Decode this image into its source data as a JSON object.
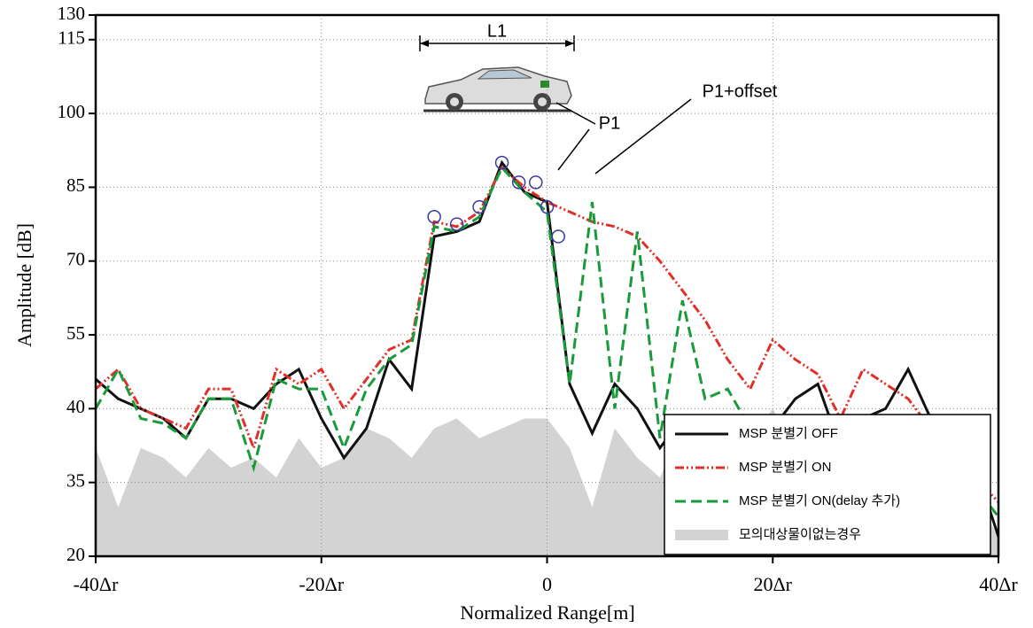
{
  "chart_data": {
    "type": "line",
    "ylabel": "Amplitude [dB]",
    "xlabel": "Normalized Range[m]",
    "xlim": [
      -40,
      40
    ],
    "xticks": [
      {
        "value": -40,
        "label": "-40Δr"
      },
      {
        "value": -20,
        "label": "-20Δr"
      },
      0,
      {
        "value": 20,
        "label": "20Δr"
      },
      {
        "value": 40,
        "label": "40Δr"
      }
    ],
    "ylim": [
      20,
      130
    ],
    "yticks": [
      20,
      35,
      {
        "value": 50,
        "label": "40"
      },
      {
        "value": 65,
        "label": "55"
      },
      {
        "value": 80,
        "label": "70"
      },
      {
        "value": 95,
        "label": "85"
      },
      {
        "value": 110,
        "label": "100"
      },
      {
        "value": 125,
        "label": "115"
      },
      130
    ],
    "grid": true,
    "legend": "lower right",
    "annotations": [
      "L1",
      "P1",
      "P1+offset"
    ],
    "x": [
      -40,
      -38,
      -36,
      -34,
      -32,
      -30,
      -28,
      -26,
      -24,
      -22,
      -20,
      -18,
      -16,
      -14,
      -12,
      -10,
      -8,
      -6,
      -4,
      -2,
      0,
      2,
      4,
      6,
      8,
      10,
      12,
      14,
      16,
      18,
      20,
      22,
      24,
      26,
      28,
      30,
      32,
      34,
      36,
      38,
      40
    ],
    "series": [
      {
        "name": "MSP 분별기 OFF",
        "color": "#111111",
        "style": "solid",
        "values": [
          56,
          52,
          50,
          48,
          44,
          52,
          52,
          50,
          55,
          58,
          48,
          40,
          46,
          60,
          54,
          85,
          86,
          88,
          100,
          94,
          92,
          55,
          45,
          55,
          50,
          42,
          48,
          44,
          40,
          44,
          46,
          52,
          55,
          42,
          48,
          50,
          58,
          48,
          46,
          38,
          24
        ]
      },
      {
        "name": "MSP 분별기 ON",
        "color": "#e0302a",
        "style": "dashdotdot",
        "values": [
          54,
          58,
          50,
          48,
          46,
          54,
          54,
          42,
          58,
          55,
          58,
          50,
          56,
          62,
          64,
          88,
          87,
          90,
          99,
          95,
          92,
          90,
          88,
          87,
          85,
          80,
          74,
          68,
          60,
          54,
          64,
          60,
          57,
          48,
          58,
          55,
          52,
          46,
          44,
          36,
          31
        ]
      },
      {
        "name": "MSP 분별기 ON(delay 추가)",
        "color": "#1a9a3a",
        "style": "dashed",
        "values": [
          50,
          58,
          48,
          47,
          44,
          52,
          52,
          38,
          56,
          54,
          54,
          42,
          54,
          60,
          63,
          87,
          86,
          89,
          99,
          94,
          90,
          55,
          92,
          50,
          86,
          44,
          72,
          52,
          54,
          46,
          48,
          46,
          44,
          38,
          44,
          40,
          38,
          42,
          36,
          34,
          28
        ]
      },
      {
        "name": "모의대상물이없는경우",
        "color": "#d3d3d3",
        "style": "area",
        "values": [
          42,
          30,
          42,
          40,
          36,
          42,
          38,
          40,
          36,
          44,
          38,
          40,
          46,
          44,
          40,
          46,
          48,
          44,
          46,
          48,
          48,
          42,
          30,
          46,
          40,
          36,
          46,
          44,
          40,
          44,
          50,
          42,
          46,
          40,
          44,
          42,
          40,
          38,
          40,
          32,
          24
        ]
      }
    ]
  }
}
